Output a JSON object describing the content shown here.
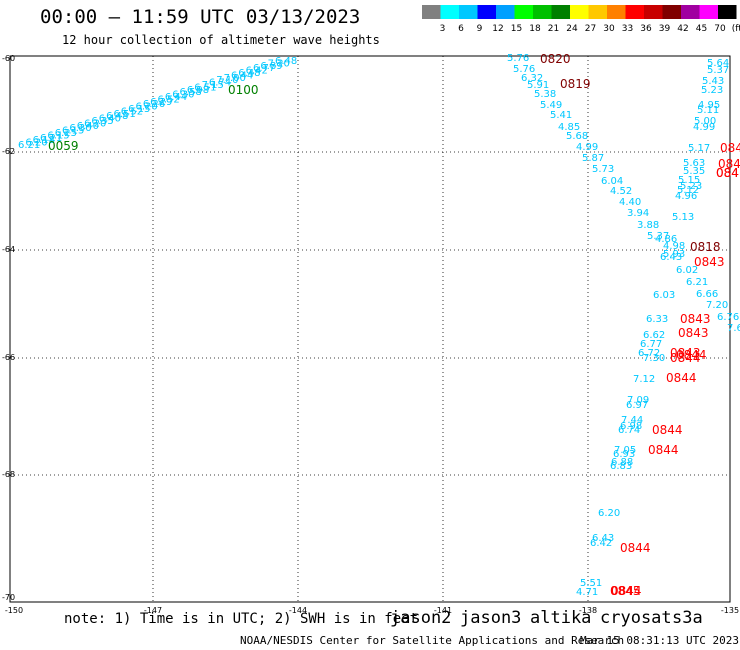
{
  "title": "00:00 – 11:59 UTC 03/13/2023",
  "subtitle": "12 hour collection of altimeter wave heights",
  "scale": {
    "labels": [
      "3",
      "6",
      "9",
      "12",
      "15",
      "18",
      "21",
      "24",
      "27",
      "30",
      "33",
      "36",
      "39",
      "42",
      "45",
      "70",
      "(ft)"
    ],
    "colors": [
      "#808080",
      "#00ffff",
      "#00c8ff",
      "#0000ff",
      "#00a0ff",
      "#00ff00",
      "#00c000",
      "#008000",
      "#ffff00",
      "#ffc800",
      "#ff8000",
      "#ff0000",
      "#c80000",
      "#800000",
      "#a000a0",
      "#ff00ff",
      "#000000"
    ]
  },
  "map": {
    "lon_ticks": [
      "-150",
      "-147",
      "-144",
      "-141",
      "-138",
      "-135"
    ],
    "lat_ticks": [
      "-60",
      "-62",
      "-64",
      "-66",
      "-68",
      "-70"
    ],
    "colors": {
      "jason3": "#008000",
      "sat_c": "#00c8ff",
      "cryosat": "#ff0000",
      "s3a": "#800000"
    }
  },
  "tracks": {
    "track_a": {
      "heights": [
        "6.48",
        "7.20",
        "6.89",
        "6.77",
        "6.42",
        "6.48",
        "6.44",
        "7.00",
        "7.10",
        "6.74",
        "7.15",
        "6.51",
        "6.98",
        "6.58",
        "6.30",
        "6.44",
        "6.52",
        "6.29",
        "6.26",
        "6.20",
        "6.15",
        "6.52",
        "6.51",
        "6.48",
        "6.40",
        "6.35",
        "6.20",
        "6.40",
        "6.30",
        "6.15",
        "6.25",
        "6.15",
        "6.21",
        "6.18",
        "6.20",
        "6.21"
      ],
      "time_labels": [
        "0100",
        "0059"
      ]
    },
    "track_b": {
      "heights": [
        "5.76",
        "5.76",
        "6.32",
        "5.91",
        "5.38",
        "5.49",
        "5.41",
        "4.85",
        "5.68",
        "4.99",
        "5.87",
        "5.73",
        "6.04",
        "4.52",
        "4.40",
        "3.94",
        "3.88",
        "5.37",
        "4.86",
        "4.98",
        "6.43",
        "5.93",
        "6.02",
        "6.21",
        "6.03",
        "6.66",
        "7.20",
        "6.76",
        "7.6",
        "6.33",
        "6.62",
        "6.77",
        "6.72",
        "7.30",
        "7.12",
        "7.09",
        "6.97",
        "7.44",
        "6.98",
        "6.74",
        "7.05",
        "6.93",
        "6.88",
        "6.83",
        "6.20",
        "6.43",
        "6.42",
        "5.51",
        "4.71"
      ],
      "time_labels": [
        "0820",
        "0819",
        "0818"
      ]
    },
    "track_c": {
      "heights": [
        "5.64",
        "5.37",
        "5.43",
        "5.23",
        "4.95",
        "5.11",
        "5.00",
        "4.99",
        "5.17",
        "5.63",
        "5.35",
        "5.15",
        "5.23",
        "5.12",
        "4.96",
        "5.13"
      ],
      "time_labels": [
        "0843",
        "0843",
        "0843",
        "0843",
        "0844",
        "0844",
        "0844",
        "0844",
        "0844",
        "0844",
        "0844",
        "0845",
        "0845",
        "084",
        "084",
        "084"
      ]
    }
  },
  "note": "note: 1) Time is in UTC; 2) SWH is in feet",
  "satellites": [
    {
      "name": "jason2",
      "color": "#0000cc"
    },
    {
      "name": "jason3",
      "color": "#008000"
    },
    {
      "name": "altika",
      "color": "#ff8c00"
    },
    {
      "name": "cryosat",
      "color": "#ff0000"
    },
    {
      "name": "s3a",
      "color": "#800000"
    }
  ],
  "credit": "NOAA/NESDIS Center for Satellite Applications and Research",
  "timestamp": "Mar 15 08:31:13 UTC 2023"
}
